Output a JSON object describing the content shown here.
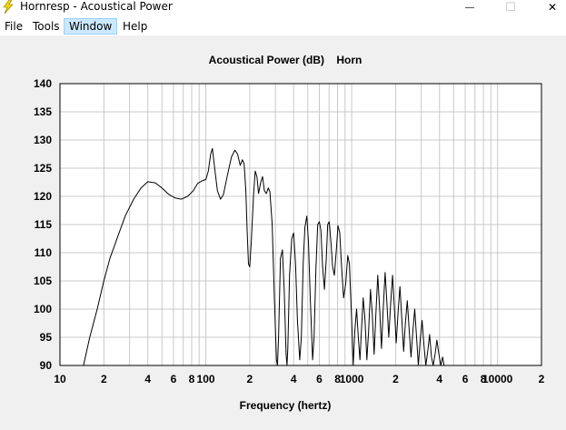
{
  "window": {
    "title": "Hornresp - Acoustical Power",
    "minimize_glyph": "—",
    "maximize_glyph": "☐",
    "close_glyph": "✕",
    "app_icon": "lightning-bolt-icon"
  },
  "menu": {
    "items": [
      {
        "label": "File"
      },
      {
        "label": "Tools"
      },
      {
        "label": "Window"
      },
      {
        "label": "Help"
      }
    ],
    "active_index": 2
  },
  "chart_data": {
    "type": "line",
    "title": "Acoustical Power (dB)    Horn",
    "xlabel": "Frequency (hertz)",
    "ylabel": "",
    "x_scale": "log",
    "xlim": [
      10,
      20000
    ],
    "ylim": [
      90,
      140
    ],
    "yticks": [
      90,
      95,
      100,
      105,
      110,
      115,
      120,
      125,
      130,
      135,
      140
    ],
    "xtick_labels": [
      {
        "value": 10,
        "label": "10"
      },
      {
        "value": 20,
        "label": "2"
      },
      {
        "value": 40,
        "label": "4"
      },
      {
        "value": 60,
        "label": "6"
      },
      {
        "value": 80,
        "label": "8"
      },
      {
        "value": 100,
        "label": "100"
      },
      {
        "value": 200,
        "label": "2"
      },
      {
        "value": 400,
        "label": "4"
      },
      {
        "value": 600,
        "label": "6"
      },
      {
        "value": 800,
        "label": "8"
      },
      {
        "value": 1000,
        "label": "1000"
      },
      {
        "value": 2000,
        "label": "2"
      },
      {
        "value": 4000,
        "label": "4"
      },
      {
        "value": 6000,
        "label": "6"
      },
      {
        "value": 8000,
        "label": "8"
      },
      {
        "value": 10000,
        "label": "10000"
      },
      {
        "value": 20000,
        "label": "2"
      }
    ],
    "grid": true,
    "colors": {
      "line": "#000000",
      "grid": "#c8c8c8",
      "plot_bg": "#ffffff"
    },
    "series": [
      {
        "points": [
          [
            14.5,
            90
          ],
          [
            16,
            95
          ],
          [
            18,
            100
          ],
          [
            20,
            105
          ],
          [
            22,
            109
          ],
          [
            25,
            113
          ],
          [
            28,
            116.5
          ],
          [
            32,
            119.5
          ],
          [
            36,
            121.5
          ],
          [
            40,
            122.6
          ],
          [
            45,
            122.4
          ],
          [
            50,
            121.5
          ],
          [
            56,
            120.3
          ],
          [
            62,
            119.7
          ],
          [
            68,
            119.5
          ],
          [
            75,
            120
          ],
          [
            82,
            121
          ],
          [
            88,
            122.3
          ],
          [
            95,
            122.8
          ],
          [
            100,
            123
          ],
          [
            104,
            124.5
          ],
          [
            108,
            127.5
          ],
          [
            111,
            128.5
          ],
          [
            115,
            125
          ],
          [
            120,
            121
          ],
          [
            126,
            119.5
          ],
          [
            132,
            120.3
          ],
          [
            140,
            123.5
          ],
          [
            150,
            127
          ],
          [
            158,
            128.2
          ],
          [
            165,
            127.5
          ],
          [
            172,
            125.5
          ],
          [
            178,
            126.5
          ],
          [
            183,
            125.8
          ],
          [
            188,
            121
          ],
          [
            192,
            114
          ],
          [
            196,
            108
          ],
          [
            200,
            107.5
          ],
          [
            205,
            112
          ],
          [
            212,
            120
          ],
          [
            218,
            124.5
          ],
          [
            224,
            123.5
          ],
          [
            230,
            120.5
          ],
          [
            238,
            122.5
          ],
          [
            245,
            123.5
          ],
          [
            252,
            121
          ],
          [
            260,
            120.5
          ],
          [
            268,
            121.5
          ],
          [
            275,
            120.8
          ],
          [
            285,
            115
          ],
          [
            295,
            102
          ],
          [
            305,
            91
          ],
          [
            310,
            90
          ],
          [
            315,
            95
          ],
          [
            325,
            109
          ],
          [
            335,
            110.5
          ],
          [
            345,
            103
          ],
          [
            355,
            92
          ],
          [
            360,
            90
          ],
          [
            365,
            93
          ],
          [
            375,
            106
          ],
          [
            388,
            112.5
          ],
          [
            400,
            113.5
          ],
          [
            412,
            108
          ],
          [
            425,
            98
          ],
          [
            440,
            91
          ],
          [
            452,
            95
          ],
          [
            465,
            108
          ],
          [
            478,
            114.5
          ],
          [
            492,
            116.5
          ],
          [
            505,
            112
          ],
          [
            520,
            102
          ],
          [
            540,
            91
          ],
          [
            552,
            95
          ],
          [
            568,
            107
          ],
          [
            585,
            115
          ],
          [
            600,
            115.5
          ],
          [
            615,
            114
          ],
          [
            632,
            107.5
          ],
          [
            650,
            103.5
          ],
          [
            668,
            108.5
          ],
          [
            685,
            115
          ],
          [
            702,
            115.5
          ],
          [
            720,
            112
          ],
          [
            740,
            107.5
          ],
          [
            760,
            106
          ],
          [
            782,
            110
          ],
          [
            805,
            114.8
          ],
          [
            828,
            113.5
          ],
          [
            850,
            108
          ],
          [
            880,
            102
          ],
          [
            910,
            104.5
          ],
          [
            940,
            109.5
          ],
          [
            965,
            108
          ],
          [
            1000,
            98
          ],
          [
            1025,
            90
          ],
          [
            1050,
            96
          ],
          [
            1080,
            100
          ],
          [
            1110,
            95
          ],
          [
            1140,
            91
          ],
          [
            1170,
            97
          ],
          [
            1200,
            102
          ],
          [
            1235,
            98
          ],
          [
            1270,
            91
          ],
          [
            1305,
            96
          ],
          [
            1345,
            103.5
          ],
          [
            1385,
            99
          ],
          [
            1425,
            92
          ],
          [
            1465,
            99
          ],
          [
            1510,
            106
          ],
          [
            1555,
            100
          ],
          [
            1600,
            93
          ],
          [
            1645,
            100
          ],
          [
            1695,
            106.5
          ],
          [
            1745,
            101
          ],
          [
            1795,
            95
          ],
          [
            1850,
            101
          ],
          [
            1905,
            106
          ],
          [
            1960,
            100.5
          ],
          [
            2020,
            94
          ],
          [
            2080,
            99.5
          ],
          [
            2140,
            104
          ],
          [
            2205,
            98.5
          ],
          [
            2270,
            92.5
          ],
          [
            2335,
            97.5
          ],
          [
            2405,
            101.5
          ],
          [
            2475,
            96.5
          ],
          [
            2550,
            91.5
          ],
          [
            2625,
            96
          ],
          [
            2705,
            100
          ],
          [
            2785,
            95
          ],
          [
            2865,
            90
          ],
          [
            2950,
            94.5
          ],
          [
            3040,
            98
          ],
          [
            3130,
            93.5
          ],
          [
            3220,
            90
          ],
          [
            3320,
            92.5
          ],
          [
            3420,
            95.5
          ],
          [
            3520,
            91.5
          ],
          [
            3620,
            90
          ],
          [
            3730,
            92
          ],
          [
            3840,
            94.5
          ],
          [
            3960,
            92
          ],
          [
            4080,
            90
          ],
          [
            4200,
            91.5
          ],
          [
            4300,
            90
          ]
        ]
      }
    ]
  }
}
